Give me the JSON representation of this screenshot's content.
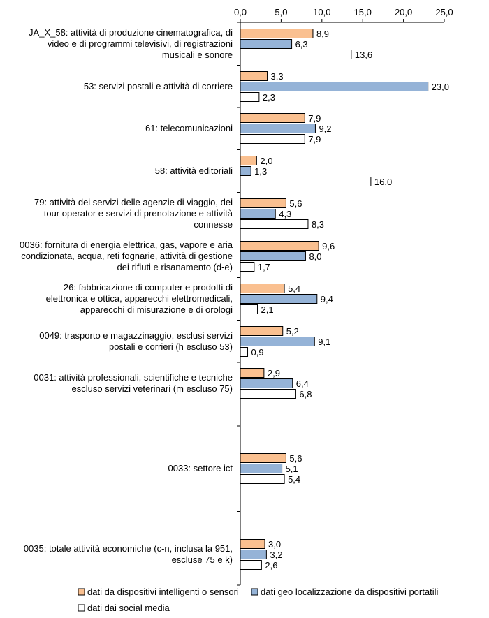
{
  "chart_data": {
    "type": "bar",
    "orientation": "horizontal",
    "categories": [
      "JA_X_58: attività di produzione cinematografica, di video e di programmi televisivi, di registrazioni musicali e sonore",
      "53: servizi postali e attività di corriere",
      "61: telecomunicazioni",
      "58: attività editoriali",
      "79: attività dei servizi delle agenzie di viaggio, dei tour operator e servizi di prenotazione e attività connesse",
      "0036: fornitura di energia elettrica, gas, vapore e aria condizionata, acqua, reti fognarie, attività di gestione dei rifiuti e risanamento (d-e)",
      "26: fabbricazione di computer e prodotti di elettronica e ottica, apparecchi elettromedicali, apparecchi di misurazione e di orologi",
      "0049: trasporto e magazzinaggio, esclusi servizi postali e corrieri (h escluso 53)",
      "0031: attività professionali, scientifiche e tecniche escluso servizi veterinari (m escluso 75)",
      "0033: settore ict",
      "0035: totale attività economiche (c-n, inclusa la 951, escluse 75 e k)"
    ],
    "category_lines": [
      [
        "JA_X_58: attività di produzione cinematografica, di",
        "video e di programmi televisivi, di registrazioni",
        "musicali e sonore"
      ],
      [
        "53: servizi postali e attività di corriere"
      ],
      [
        "61: telecomunicazioni"
      ],
      [
        "58: attività editoriali"
      ],
      [
        "79: attività dei servizi delle agenzie di viaggio, dei",
        "tour operator e servizi di prenotazione e attività",
        "connesse"
      ],
      [
        "0036: fornitura di energia elettrica, gas, vapore e aria",
        "condizionata, acqua, reti fognarie, attività di gestione",
        "dei rifiuti e risanamento (d-e)"
      ],
      [
        "26: fabbricazione di computer e prodotti di",
        "elettronica e ottica, apparecchi elettromedicali,",
        "apparecchi di misurazione e di orologi"
      ],
      [
        "0049: trasporto e magazzinaggio, esclusi servizi",
        "postali e corrieri (h escluso 53)"
      ],
      [
        "0031: attività professionali, scientifiche e tecniche",
        "escluso servizi veterinari (m escluso 75)"
      ],
      [
        "0033: settore ict"
      ],
      [
        "0035: totale attività economiche (c-n, inclusa la 951,",
        "escluse 75 e k)"
      ]
    ],
    "value_labels": [
      [
        "8,9",
        "6,3",
        "13,6"
      ],
      [
        "3,3",
        "23,0",
        "2,3"
      ],
      [
        "7,9",
        "9,2",
        "7,9"
      ],
      [
        "2,0",
        "1,3",
        "16,0"
      ],
      [
        "5,6",
        "4,3",
        "8,3"
      ],
      [
        "9,6",
        "8,0",
        "1,7"
      ],
      [
        "5,4",
        "9,4",
        "2,1"
      ],
      [
        "5,2",
        "9,1",
        "0,9"
      ],
      [
        "2,9",
        "6,4",
        "6,8"
      ],
      [
        "5,6",
        "5,1",
        "5,4"
      ],
      [
        "3,0",
        "3,2",
        "2,6"
      ]
    ],
    "series": [
      {
        "name": "dati da dispositivi intelligenti o sensori",
        "color": "#fac090",
        "values": [
          8.9,
          3.3,
          7.9,
          2.0,
          5.6,
          9.6,
          5.4,
          5.2,
          2.9,
          5.6,
          3.0
        ]
      },
      {
        "name": "dati geo localizzazione da dispositivi portatili",
        "color": "#95b3d7",
        "values": [
          6.3,
          23.0,
          9.2,
          1.3,
          4.3,
          8.0,
          9.4,
          9.1,
          6.4,
          5.1,
          3.2
        ]
      },
      {
        "name": "dati dai social media",
        "color": "#ffffff",
        "values": [
          13.6,
          2.3,
          7.9,
          16.0,
          8.3,
          1.7,
          2.1,
          0.9,
          6.8,
          5.4,
          2.6
        ]
      }
    ],
    "x_ticks": [
      0,
      5,
      10,
      15,
      20,
      25
    ],
    "x_tick_labels": [
      "0,0",
      "5,0",
      "10,0",
      "15,0",
      "20,0",
      "25,0"
    ],
    "xlim": [
      0,
      25
    ],
    "xaxis_position": "top",
    "grid": false,
    "legend_position": "bottom",
    "title": "",
    "xlabel": "",
    "ylabel": ""
  }
}
